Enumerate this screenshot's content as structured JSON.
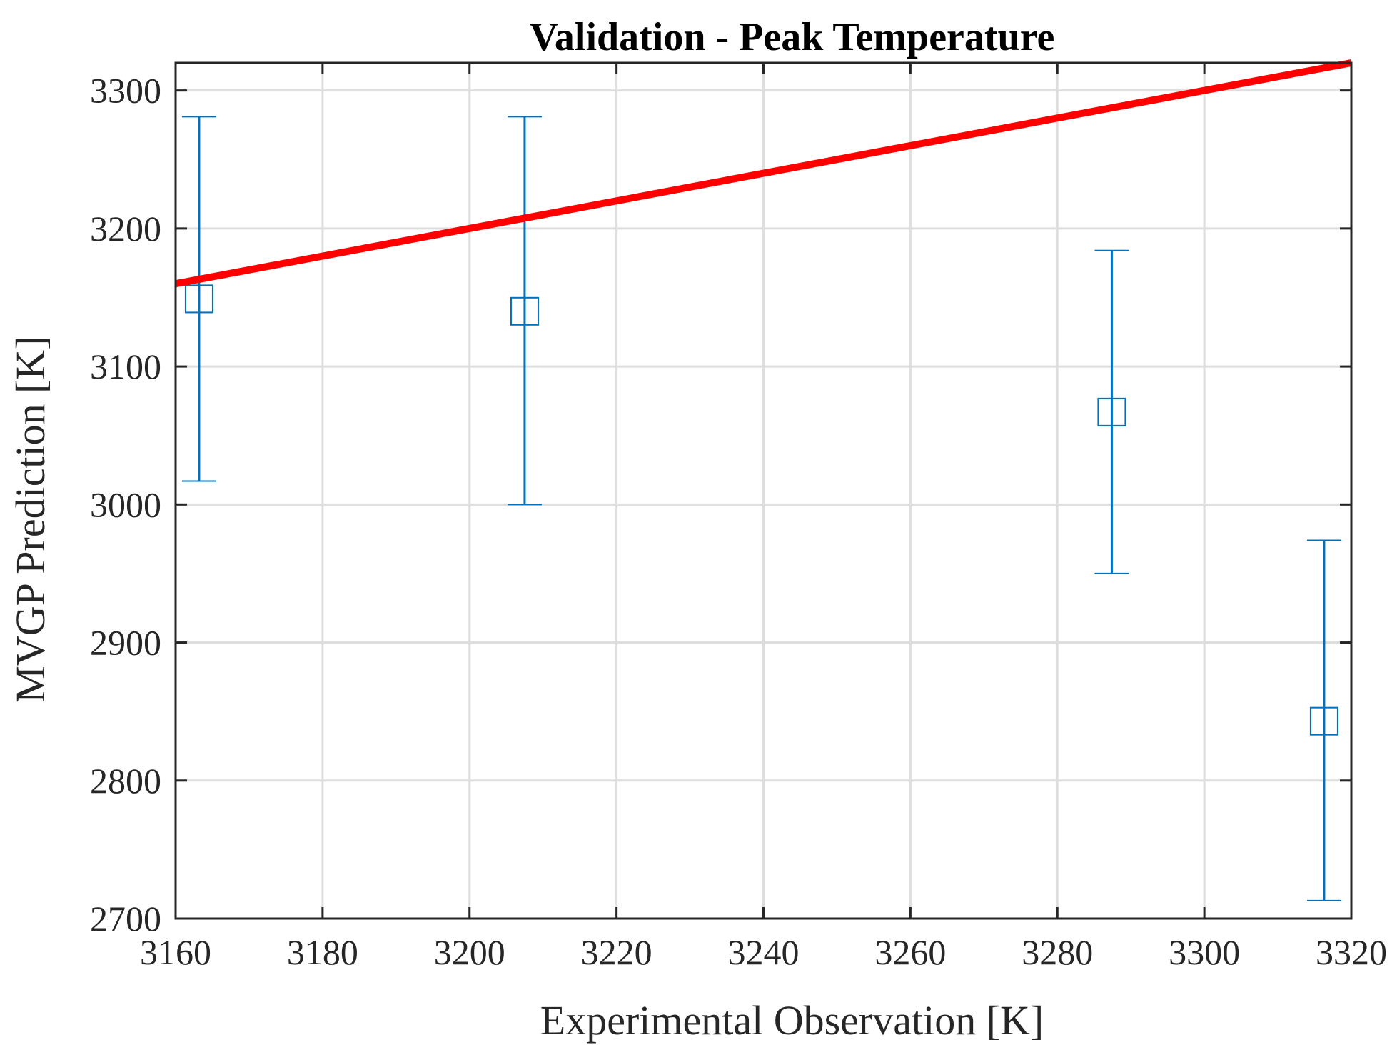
{
  "chart_data": {
    "type": "scatter",
    "title": "Validation - Peak Temperature",
    "xlabel": "Experimental Observation [K]",
    "ylabel": "MVGP Prediction [K]",
    "xlim": [
      3160,
      3320
    ],
    "ylim": [
      2700,
      3320
    ],
    "xticks": [
      3160,
      3180,
      3200,
      3220,
      3240,
      3260,
      3280,
      3300,
      3320
    ],
    "yticks": [
      2700,
      2800,
      2900,
      3000,
      3100,
      3200,
      3300
    ],
    "grid": true,
    "legend": "none",
    "series": [
      {
        "type": "errorbar",
        "marker": "square",
        "color": "#0072BD",
        "points": [
          {
            "x": 3163.2,
            "y": 3149,
            "ylow": 3017,
            "yhigh": 3281
          },
          {
            "x": 3207.5,
            "y": 3140,
            "ylow": 3000,
            "yhigh": 3281
          },
          {
            "x": 3287.4,
            "y": 3067,
            "ylow": 2950,
            "yhigh": 3184
          },
          {
            "x": 3316.3,
            "y": 2843,
            "ylow": 2713,
            "yhigh": 2974
          }
        ]
      },
      {
        "type": "line",
        "color": "#FF0000",
        "x": [
          3160,
          3320
        ],
        "y": [
          3160,
          3320
        ]
      }
    ]
  }
}
